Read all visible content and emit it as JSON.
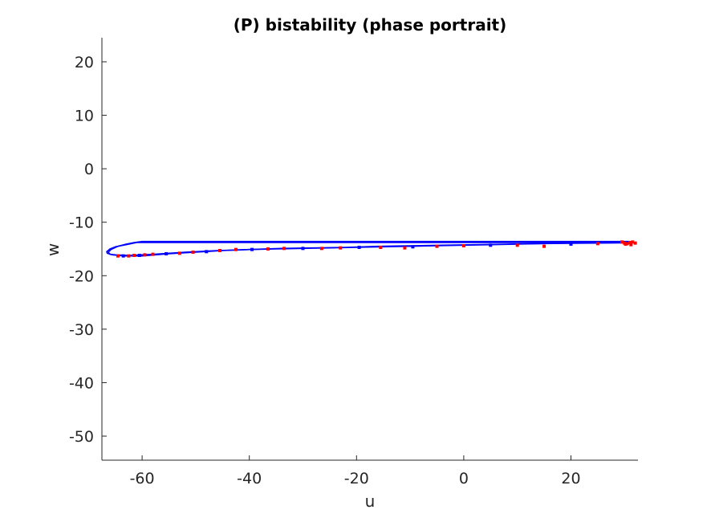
{
  "chart_data": {
    "type": "line",
    "title": "(P) bistability (phase portrait)",
    "xlabel": "u",
    "ylabel": "w",
    "xlim": [
      -67.5,
      32.5
    ],
    "ylim": [
      -54.5,
      24.5
    ],
    "xticks": [
      -60,
      -40,
      -20,
      0,
      20
    ],
    "yticks": [
      20,
      10,
      0,
      -10,
      -20,
      -30,
      -40,
      -50
    ],
    "grid": false,
    "legend": "none",
    "colors": {
      "trajectory": "#0000ff",
      "markers": "#ff0000",
      "axis": "#262626"
    },
    "series": [
      {
        "style": "line",
        "x": [
          31,
          20,
          0,
          -20,
          -40,
          -55,
          -61,
          -62,
          -63,
          -64,
          -65,
          -66,
          -66.6,
          -66.5,
          -65.5,
          -63.5,
          -60,
          -55,
          -50,
          -45,
          -40,
          -35,
          -30,
          -25,
          -20,
          -15,
          -10,
          -5,
          0,
          5,
          10,
          15,
          20,
          25,
          31
        ],
        "y": [
          -13.8,
          -13.8,
          -13.8,
          -13.8,
          -13.8,
          -13.8,
          -13.8,
          -14.0,
          -14.2,
          -14.4,
          -14.6,
          -15.0,
          -15.5,
          -15.8,
          -16.1,
          -16.3,
          -16.3,
          -15.9,
          -15.6,
          -15.3,
          -15.1,
          -15.0,
          -14.9,
          -14.8,
          -14.7,
          -14.6,
          -14.5,
          -14.4,
          -14.3,
          -14.2,
          -14.1,
          -14.0,
          -13.95,
          -13.9,
          -13.85
        ]
      },
      {
        "style": "line",
        "x": [
          31,
          20,
          0,
          -20,
          -40,
          -55,
          -60,
          -61.5,
          -63,
          -64.5,
          -65.8,
          -66.3,
          -66.0,
          -65.0,
          -62.5,
          -58,
          -52,
          -46,
          -40,
          -34,
          -28,
          -22,
          -16,
          -10,
          -4,
          2,
          8,
          14,
          20,
          26,
          31
        ],
        "y": [
          -13.6,
          -13.6,
          -13.6,
          -13.6,
          -13.6,
          -13.6,
          -13.6,
          -13.8,
          -14.1,
          -14.5,
          -15.1,
          -15.6,
          -16.0,
          -16.1,
          -16.2,
          -16.0,
          -15.6,
          -15.3,
          -15.1,
          -14.9,
          -14.8,
          -14.7,
          -14.5,
          -14.4,
          -14.3,
          -14.2,
          -14.1,
          -14.0,
          -13.9,
          -13.8,
          -13.7
        ]
      },
      {
        "style": "markers",
        "x": [
          -64.5,
          -63.5,
          -62.5,
          -61.5,
          -60.5,
          -59.5,
          -58,
          -55.5,
          -53,
          -50.5,
          -48,
          -45.5,
          -42.5,
          -39.5,
          -36.5,
          -33.5,
          -30,
          -26.5,
          -23,
          -19.5,
          -15.5,
          -11,
          -9.5,
          -5,
          0,
          5,
          10,
          15,
          20,
          25
        ],
        "y": [
          -16.3,
          -16.3,
          -16.3,
          -16.2,
          -16.2,
          -16.1,
          -16.0,
          -15.9,
          -15.8,
          -15.6,
          -15.5,
          -15.3,
          -15.1,
          -15.1,
          -15.0,
          -14.9,
          -14.9,
          -14.9,
          -14.8,
          -14.7,
          -14.7,
          -14.8,
          -14.6,
          -14.5,
          -14.4,
          -14.3,
          -14.3,
          -14.5,
          -14.1,
          -14.0
        ]
      },
      {
        "style": "markers",
        "x": [
          29.5,
          30,
          30.5,
          31,
          31.5,
          32,
          30.2,
          31.2
        ],
        "y": [
          -13.7,
          -13.9,
          -14.0,
          -13.8,
          -13.7,
          -13.9,
          -14.1,
          -14.2
        ]
      }
    ]
  }
}
